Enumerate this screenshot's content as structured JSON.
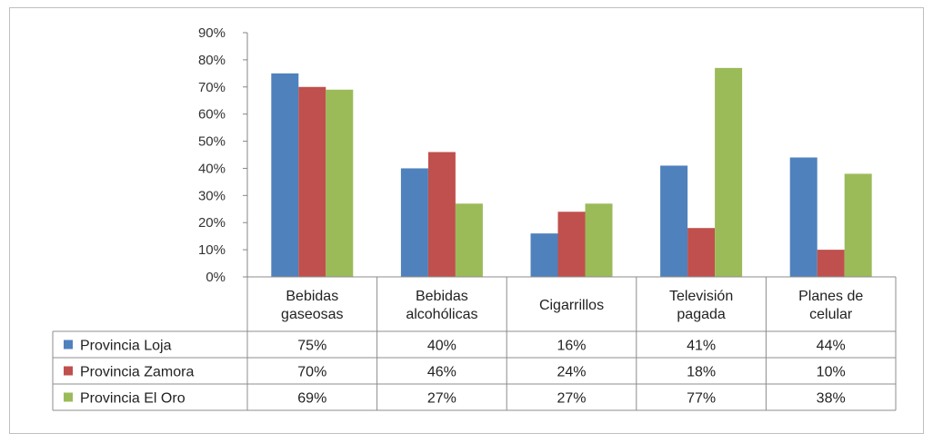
{
  "chart_data": {
    "type": "bar",
    "categories": [
      [
        "Bebidas",
        "gaseosas"
      ],
      [
        "Bebidas",
        "alcohólicas"
      ],
      [
        "Cigarrillos"
      ],
      [
        "Televisión",
        "pagada"
      ],
      [
        "Planes de",
        "celular"
      ]
    ],
    "series": [
      {
        "name": "Provincia Loja",
        "color": "#4f81bd",
        "values": [
          75,
          40,
          16,
          41,
          44
        ],
        "labels": [
          "75%",
          "40%",
          "16%",
          "41%",
          "44%"
        ]
      },
      {
        "name": "Provincia Zamora",
        "color": "#c0504d",
        "values": [
          70,
          46,
          24,
          18,
          10
        ],
        "labels": [
          "70%",
          "46%",
          "24%",
          "18%",
          "10%"
        ]
      },
      {
        "name": "Provincia El Oro",
        "color": "#9bbb59",
        "values": [
          69,
          27,
          27,
          77,
          38
        ],
        "labels": [
          "69%",
          "27%",
          "27%",
          "77%",
          "38%"
        ]
      }
    ],
    "ylim": [
      0,
      90
    ],
    "yticks": [
      "0%",
      "10%",
      "20%",
      "30%",
      "40%",
      "50%",
      "60%",
      "70%",
      "80%",
      "90%"
    ],
    "legend": "data-table",
    "grid": false
  }
}
